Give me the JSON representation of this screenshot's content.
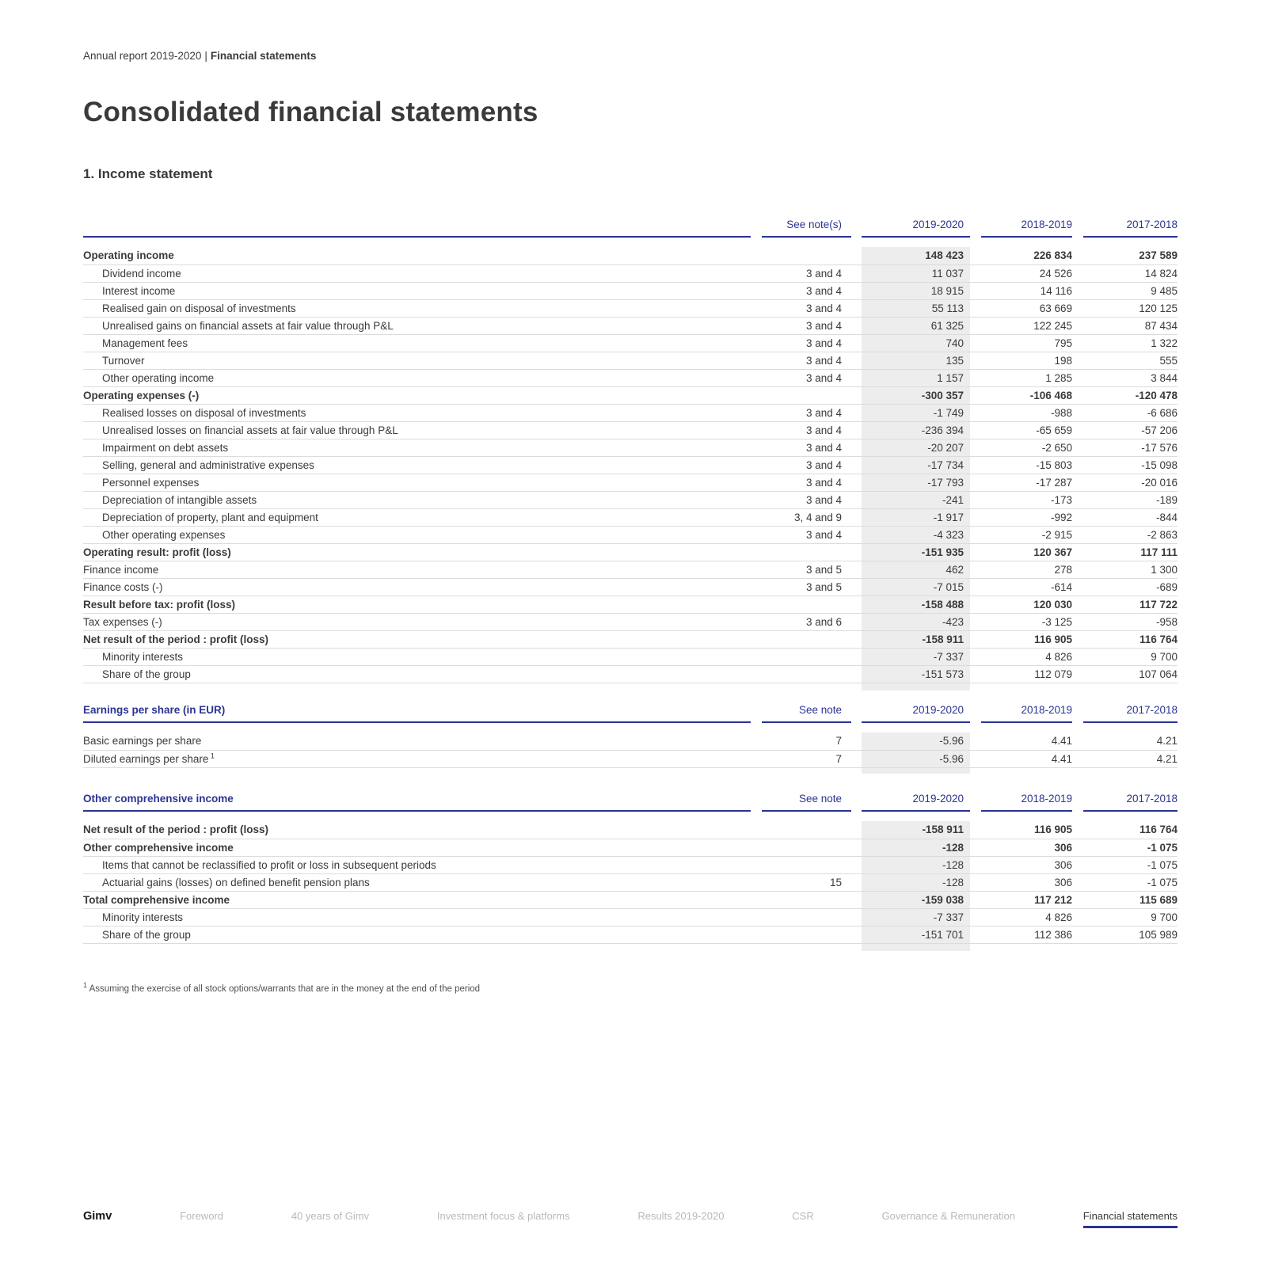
{
  "breadcrumb": {
    "prefix": "Annual report 2019-2020",
    "separator": "|",
    "current": "Financial statements"
  },
  "page": {
    "title": "Consolidated financial statements",
    "section_title": "1. Income statement",
    "footnote_mark": "1",
    "footnote": " Assuming the exercise of all stock options/warrants that are in the money at the end of the period"
  },
  "colors": {
    "accent_blue": "#2b3492",
    "highlight_column": "#ededed",
    "row_line": "#dcdcdc",
    "text": "#3a3a39",
    "footer_inactive": "#b9b9b9"
  },
  "tables": [
    {
      "name": "income-statement",
      "title": "",
      "note_header": "See note(s)",
      "year_headers": [
        "2019-2020",
        "2018-2019",
        "2017-2018"
      ],
      "follow": 0,
      "overhang": 10,
      "rows": [
        {
          "label": "Operating income",
          "bold": true,
          "indent": false,
          "note": "",
          "values": [
            "148 423",
            "226 834",
            "237 589"
          ]
        },
        {
          "label": "Dividend income",
          "bold": false,
          "indent": true,
          "note": "3 and 4",
          "values": [
            "11 037",
            "24 526",
            "14 824"
          ]
        },
        {
          "label": "Interest income",
          "bold": false,
          "indent": true,
          "note": "3 and 4",
          "values": [
            "18 915",
            "14 116",
            "9 485"
          ]
        },
        {
          "label": "Realised gain on disposal of investments",
          "bold": false,
          "indent": true,
          "note": "3 and 4",
          "values": [
            "55 113",
            "63 669",
            "120 125"
          ]
        },
        {
          "label": "Unrealised gains on financial assets at fair value through P&L",
          "bold": false,
          "indent": true,
          "note": "3 and 4",
          "values": [
            "61 325",
            "122 245",
            "87 434"
          ]
        },
        {
          "label": "Management fees",
          "bold": false,
          "indent": true,
          "note": "3 and 4",
          "values": [
            "740",
            "795",
            "1 322"
          ]
        },
        {
          "label": "Turnover",
          "bold": false,
          "indent": true,
          "note": "3 and 4",
          "values": [
            "135",
            "198",
            "555"
          ]
        },
        {
          "label": "Other operating income",
          "bold": false,
          "indent": true,
          "note": "3 and 4",
          "values": [
            "1 157",
            "1 285",
            "3 844"
          ]
        },
        {
          "label": "Operating expenses (-)",
          "bold": true,
          "indent": false,
          "note": "",
          "values": [
            "-300 357",
            "-106 468",
            "-120 478"
          ]
        },
        {
          "label": "Realised losses on disposal of investments",
          "bold": false,
          "indent": true,
          "note": "3 and 4",
          "values": [
            "-1 749",
            "-988",
            "-6 686"
          ]
        },
        {
          "label": "Unrealised losses on financial assets at fair value through P&L",
          "bold": false,
          "indent": true,
          "note": "3 and 4",
          "values": [
            "-236 394",
            "-65 659",
            "-57 206"
          ]
        },
        {
          "label": "Impairment on debt assets",
          "bold": false,
          "indent": true,
          "note": "3 and 4",
          "values": [
            "-20 207",
            "-2 650",
            "-17 576"
          ]
        },
        {
          "label": "Selling, general and administrative expenses",
          "bold": false,
          "indent": true,
          "note": "3 and 4",
          "values": [
            "-17 734",
            "-15 803",
            "-15 098"
          ]
        },
        {
          "label": "Personnel expenses",
          "bold": false,
          "indent": true,
          "note": "3 and 4",
          "values": [
            "-17 793",
            "-17 287",
            "-20 016"
          ]
        },
        {
          "label": "Depreciation of intangible assets",
          "bold": false,
          "indent": true,
          "note": "3 and 4",
          "values": [
            "-241",
            "-173",
            "-189"
          ]
        },
        {
          "label": "Depreciation of property, plant and equipment",
          "bold": false,
          "indent": true,
          "note": "3, 4 and 9",
          "values": [
            "-1 917",
            "-992",
            "-844"
          ]
        },
        {
          "label": "Other operating expenses",
          "bold": false,
          "indent": true,
          "note": "3 and 4",
          "values": [
            "-4 323",
            "-2 915",
            "-2 863"
          ]
        },
        {
          "label": "Operating result: profit (loss)",
          "bold": true,
          "indent": false,
          "note": "",
          "values": [
            "-151 935",
            "120 367",
            "117 111"
          ]
        },
        {
          "label": "Finance income",
          "bold": false,
          "indent": false,
          "note": "3 and 5",
          "values": [
            "462",
            "278",
            "1 300"
          ]
        },
        {
          "label": "Finance costs (-)",
          "bold": false,
          "indent": false,
          "note": "3 and 5",
          "values": [
            "-7 015",
            "-614",
            "-689"
          ]
        },
        {
          "label": "Result before tax: profit (loss)",
          "bold": true,
          "indent": false,
          "note": "",
          "values": [
            "-158 488",
            "120 030",
            "117 722"
          ]
        },
        {
          "label": "Tax expenses (-)",
          "bold": false,
          "indent": false,
          "note": "3 and 6",
          "values": [
            "-423",
            "-3 125",
            "-958"
          ]
        },
        {
          "label": "Net result of the period : profit (loss)",
          "bold": true,
          "indent": false,
          "note": "",
          "values": [
            "-158 911",
            "116 905",
            "116 764"
          ]
        },
        {
          "label": "Minority interests",
          "bold": false,
          "indent": true,
          "note": "",
          "values": [
            "-7 337",
            "4 826",
            "9 700"
          ]
        },
        {
          "label": "Share of the group",
          "bold": false,
          "indent": true,
          "note": "",
          "values": [
            "-151 573",
            "112 079",
            "107 064"
          ]
        }
      ]
    },
    {
      "name": "earnings-per-share",
      "title": "Earnings per share (in EUR)",
      "note_header": "See note",
      "year_headers": [
        "2019-2020",
        "2018-2019",
        "2017-2018"
      ],
      "follow": 1,
      "overhang": 8,
      "rows": [
        {
          "label": "Basic earnings per share",
          "bold": false,
          "indent": false,
          "note": "7",
          "values": [
            "-5.96",
            "4.41",
            "4.21"
          ]
        },
        {
          "label": "Diluted earnings per share",
          "label_sup": "1",
          "bold": false,
          "indent": false,
          "note": "7",
          "values": [
            "-5.96",
            "4.41",
            "4.21"
          ]
        }
      ]
    },
    {
      "name": "other-comprehensive-income",
      "title": "Other comprehensive income",
      "note_header": "See note",
      "year_headers": [
        "2019-2020",
        "2018-2019",
        "2017-2018"
      ],
      "follow": 2,
      "overhang": 10,
      "rows": [
        {
          "label": "Net result of the period : profit (loss)",
          "bold": true,
          "indent": false,
          "note": "",
          "values": [
            "-158 911",
            "116 905",
            "116 764"
          ]
        },
        {
          "label": "Other comprehensive income",
          "bold": true,
          "indent": false,
          "note": "",
          "values": [
            "-128",
            "306",
            "-1 075"
          ]
        },
        {
          "label": "Items that cannot be reclassified to profit or loss in subsequent periods",
          "bold": false,
          "indent": true,
          "note": "",
          "values": [
            "-128",
            "306",
            "-1 075"
          ]
        },
        {
          "label": "Actuarial gains (losses) on defined benefit pension plans",
          "bold": false,
          "indent": true,
          "note": "15",
          "values": [
            "-128",
            "306",
            "-1 075"
          ]
        },
        {
          "label": "Total comprehensive income",
          "bold": true,
          "indent": false,
          "note": "",
          "values": [
            "-159 038",
            "117 212",
            "115 689"
          ]
        },
        {
          "label": "Minority interests",
          "bold": false,
          "indent": true,
          "note": "",
          "values": [
            "-7 337",
            "4 826",
            "9 700"
          ]
        },
        {
          "label": "Share of the group",
          "bold": false,
          "indent": true,
          "note": "",
          "values": [
            "-151 701",
            "112 386",
            "105 989"
          ]
        }
      ]
    }
  ],
  "footer": {
    "brand": "Gimv",
    "items": [
      {
        "label": "Foreword",
        "active": false
      },
      {
        "label": "40 years of Gimv",
        "active": false
      },
      {
        "label": "Investment focus & platforms",
        "active": false
      },
      {
        "label": "Results 2019-2020",
        "active": false
      },
      {
        "label": "CSR",
        "active": false
      },
      {
        "label": "Governance & Remuneration",
        "active": false
      },
      {
        "label": "Financial statements",
        "active": true
      }
    ]
  }
}
